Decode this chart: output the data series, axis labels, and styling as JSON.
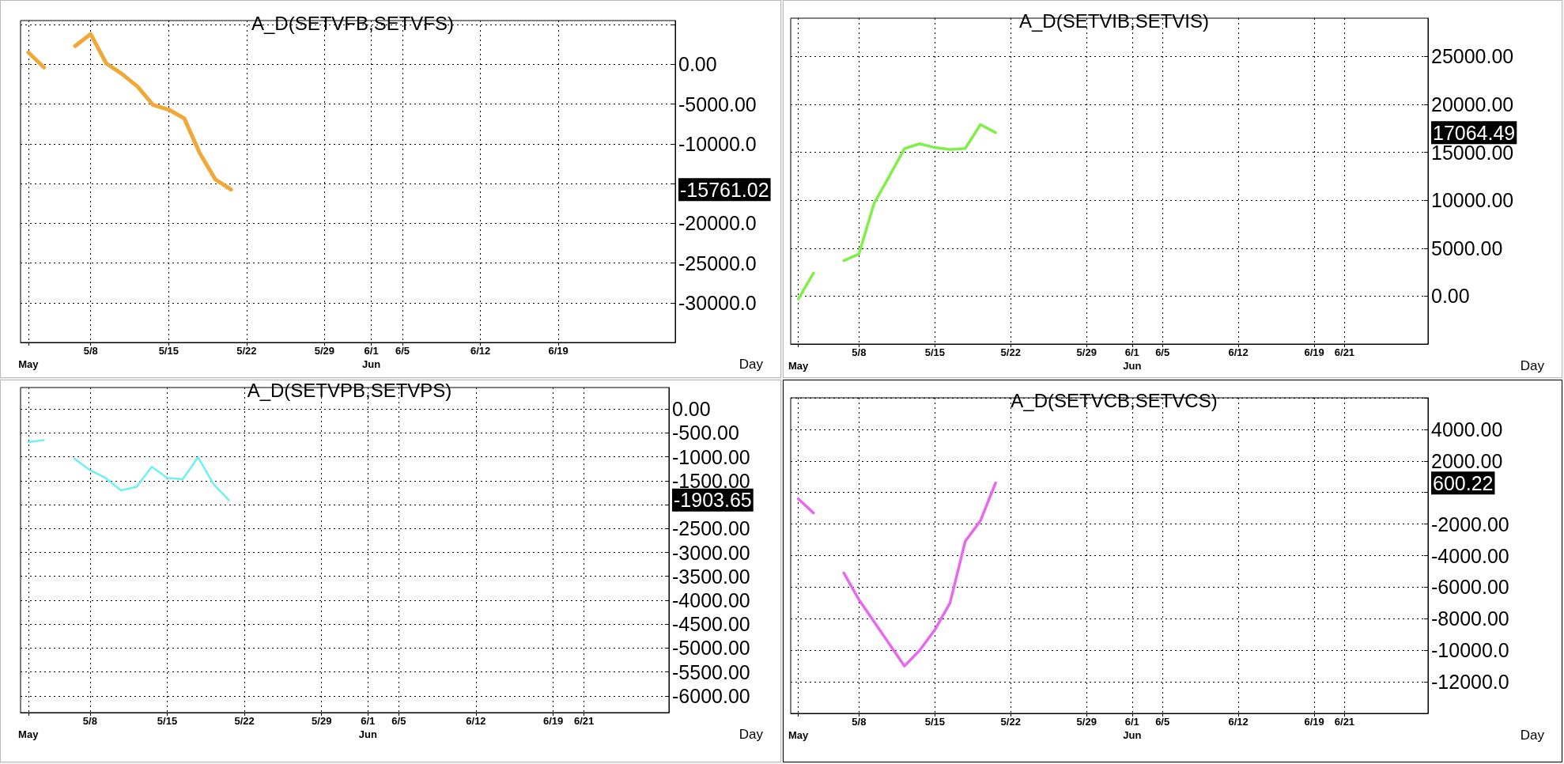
{
  "chart_data": [
    {
      "type": "line",
      "title": "A_D(SETVFB,SETVFS)",
      "xlabel": "Day",
      "grid": true,
      "categories": [
        "\nMay",
        null,
        null,
        null,
        "5/8",
        null,
        null,
        null,
        null,
        "5/15",
        null,
        null,
        null,
        null,
        "5/22",
        null,
        null,
        null,
        null,
        "5/29",
        null,
        null,
        "6/1\nJun",
        null,
        "6/5",
        null,
        null,
        null,
        null,
        "6/12",
        null,
        null,
        null,
        null,
        "6/19",
        null,
        null,
        null,
        null,
        null,
        null,
        null
      ],
      "series": [
        {
          "color": "#f0a838",
          "values": [
            1500,
            -400,
            null,
            2300,
            3800,
            100,
            -1200,
            -2800,
            -5100,
            -5700,
            -6800,
            -11200,
            -14500,
            -15761.02,
            null,
            null,
            null,
            null,
            null,
            null,
            null,
            null,
            null,
            null,
            null,
            null,
            null,
            null,
            null,
            null,
            null,
            null,
            null,
            null,
            null,
            null,
            null,
            null,
            null,
            null,
            null,
            null
          ]
        }
      ],
      "ylim": [
        -35000,
        5500
      ],
      "yticks": [
        {
          "value": 5000,
          "label": null
        },
        {
          "value": 0,
          "label": "0.00"
        },
        {
          "value": -5000,
          "label": "-5000.00"
        },
        {
          "value": -10000,
          "label": "-10000.0"
        },
        {
          "value": -15000,
          "label": null
        },
        {
          "value": -20000,
          "label": "-20000.0"
        },
        {
          "value": -25000,
          "label": "-25000.0"
        },
        {
          "value": -30000,
          "label": "-30000.0"
        }
      ],
      "annotations": [
        "-15761.02"
      ]
    },
    {
      "type": "line",
      "title": "A_D(SETVIB,SETVIS)",
      "xlabel": "Day",
      "grid": true,
      "categories": [
        "\nMay",
        null,
        null,
        null,
        "5/8",
        null,
        null,
        null,
        null,
        "5/15",
        null,
        null,
        null,
        null,
        "5/22",
        null,
        null,
        null,
        null,
        "5/29",
        null,
        null,
        "6/1\nJun",
        null,
        "6/5",
        null,
        null,
        null,
        null,
        "6/12",
        null,
        null,
        null,
        null,
        "6/19",
        null,
        "6/21",
        null,
        null,
        null,
        null,
        null
      ],
      "series": [
        {
          "color": "#80f048",
          "values": [
            -300,
            2400,
            null,
            3700,
            4400,
            9700,
            12500,
            15400,
            15900,
            15500,
            15300,
            15400,
            17900,
            17064.49,
            null,
            null,
            null,
            null,
            null,
            null,
            null,
            null,
            null,
            null,
            null,
            null,
            null,
            null,
            null,
            null,
            null,
            null,
            null,
            null,
            null,
            null,
            null,
            null,
            null,
            null,
            null,
            null
          ]
        }
      ],
      "ylim": [
        -5000,
        29000
      ],
      "yticks": [
        {
          "value": 0,
          "label": "0.00"
        },
        {
          "value": 5000,
          "label": "5000.00"
        },
        {
          "value": 10000,
          "label": "10000.00"
        },
        {
          "value": 15000,
          "label": "15000.00"
        },
        {
          "value": 20000,
          "label": "20000.00"
        },
        {
          "value": 25000,
          "label": "25000.00"
        }
      ],
      "annotations": [
        "17064.49"
      ]
    },
    {
      "type": "line",
      "title": "A_D(SETVPB,SETVPS)",
      "xlabel": "Day",
      "grid": true,
      "categories": [
        "\nMay",
        null,
        null,
        null,
        "5/8",
        null,
        null,
        null,
        null,
        "5/15",
        null,
        null,
        null,
        null,
        "5/22",
        null,
        null,
        null,
        null,
        "5/29",
        null,
        null,
        "6/1\nJun",
        null,
        "6/5",
        null,
        null,
        null,
        null,
        "6/12",
        null,
        null,
        null,
        null,
        "6/19",
        null,
        "6/21",
        null,
        null,
        null,
        null,
        null
      ],
      "series": [
        {
          "color": "#70f0f0",
          "values": [
            -690,
            -650,
            null,
            -1040,
            -1280,
            -1440,
            -1700,
            -1630,
            -1210,
            -1440,
            -1470,
            -1010,
            -1570,
            -1903.65,
            null,
            null,
            null,
            null,
            null,
            null,
            null,
            null,
            null,
            null,
            null,
            null,
            null,
            null,
            null,
            null,
            null,
            null,
            null,
            null,
            null,
            null,
            null,
            null,
            null,
            null,
            null,
            null
          ]
        }
      ],
      "ylim": [
        -6350,
        450
      ],
      "yticks": [
        {
          "value": 0,
          "label": "0.00"
        },
        {
          "value": -500,
          "label": "-500.00"
        },
        {
          "value": -1000,
          "label": "-1000.00"
        },
        {
          "value": -1500,
          "label": "-1500.00"
        },
        {
          "value": -2000,
          "label": null
        },
        {
          "value": -2500,
          "label": "-2500.00"
        },
        {
          "value": -3000,
          "label": "-3000.00"
        },
        {
          "value": -3500,
          "label": "-3500.00"
        },
        {
          "value": -4000,
          "label": "-4000.00"
        },
        {
          "value": -4500,
          "label": "-4500.00"
        },
        {
          "value": -5000,
          "label": "-5000.00"
        },
        {
          "value": -5500,
          "label": "-5500.00"
        },
        {
          "value": -6000,
          "label": "-6000.00"
        }
      ],
      "annotations": [
        "-1903.65"
      ]
    },
    {
      "type": "line",
      "title": "A_D(SETVCB,SETVCS)",
      "xlabel": "Day",
      "grid": true,
      "categories": [
        "\nMay",
        null,
        null,
        null,
        "5/8",
        null,
        null,
        null,
        null,
        "5/15",
        null,
        null,
        null,
        null,
        "5/22",
        null,
        null,
        null,
        null,
        "5/29",
        null,
        null,
        "6/1\nJun",
        null,
        "6/5",
        null,
        null,
        null,
        null,
        "6/12",
        null,
        null,
        null,
        null,
        "6/19",
        null,
        "6/21",
        null,
        null,
        null,
        null,
        null
      ],
      "series": [
        {
          "color": "#e868f0",
          "values": [
            -400,
            -1300,
            null,
            -5100,
            -6800,
            -8200,
            -9600,
            -11000,
            -10000,
            -8700,
            -7000,
            -3100,
            -1800,
            600.22,
            null,
            null,
            null,
            null,
            null,
            null,
            null,
            null,
            null,
            null,
            null,
            null,
            null,
            null,
            null,
            null,
            null,
            null,
            null,
            null,
            null,
            null,
            null,
            null,
            null,
            null,
            null,
            null
          ]
        }
      ],
      "ylim": [
        -14000,
        6000
      ],
      "yticks": [
        {
          "value": 6000,
          "label": null
        },
        {
          "value": 4000,
          "label": "4000.00"
        },
        {
          "value": 2000,
          "label": "2000.00"
        },
        {
          "value": 0,
          "label": null
        },
        {
          "value": -2000,
          "label": "-2000.00"
        },
        {
          "value": -4000,
          "label": "-4000.00"
        },
        {
          "value": -6000,
          "label": "-6000.00"
        },
        {
          "value": -8000,
          "label": "-8000.00"
        },
        {
          "value": -10000,
          "label": "-10000.0"
        },
        {
          "value": -12000,
          "label": "-12000.0"
        }
      ],
      "annotations": [
        "600.22"
      ]
    }
  ]
}
